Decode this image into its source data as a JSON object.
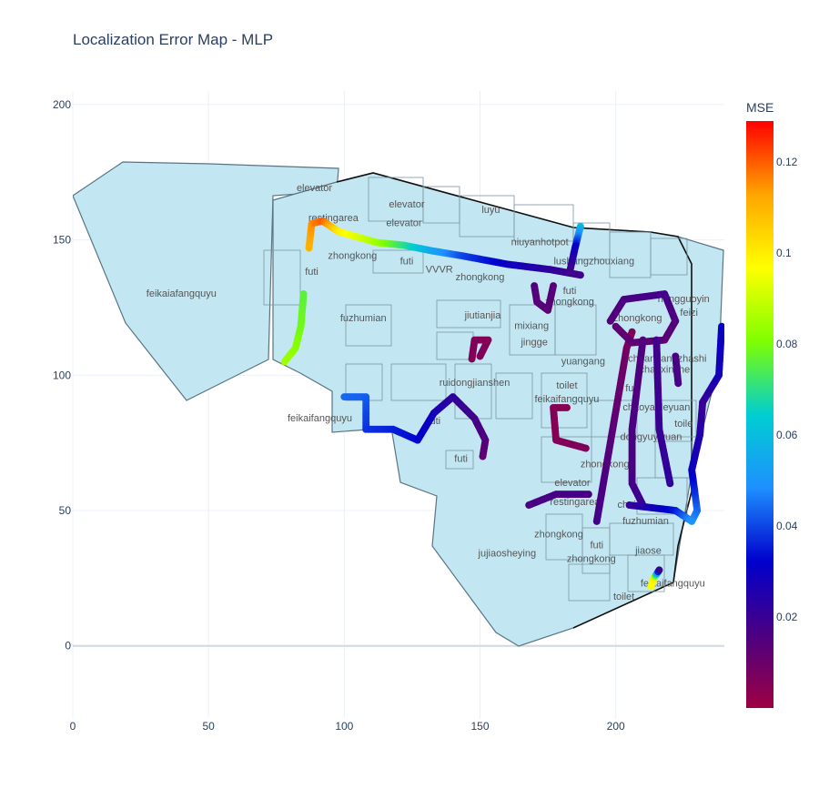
{
  "chart_data": {
    "type": "scatter",
    "title": "Localization Error Map - MLP",
    "xlim": [
      0,
      240
    ],
    "ylim": [
      -27,
      205
    ],
    "x_ticks": [
      0,
      50,
      100,
      150,
      200
    ],
    "y_ticks": [
      0,
      50,
      100,
      150,
      200
    ],
    "grid": true,
    "colorbar": {
      "title": "MSE",
      "range": [
        0.0,
        0.129
      ],
      "ticks": [
        "0.02",
        "0.04",
        "0.06",
        "0.08",
        "0.1",
        "0.12"
      ],
      "colorscale": [
        "#9e0142",
        "#4b0082",
        "#0000cd",
        "#1e90ff",
        "#00ced1",
        "#7fff00",
        "#ffff00",
        "#ffa500",
        "#ff0000"
      ]
    },
    "floorplan_color": "#c3e7f2",
    "labels": [
      {
        "text": "elevator",
        "x": 89,
        "y": 168
      },
      {
        "text": "restingarea",
        "x": 96,
        "y": 157
      },
      {
        "text": "elevator",
        "x": 123,
        "y": 162
      },
      {
        "text": "elevator",
        "x": 122,
        "y": 155
      },
      {
        "text": "luyu",
        "x": 154,
        "y": 160
      },
      {
        "text": "niuyanhotpot",
        "x": 172,
        "y": 148
      },
      {
        "text": "zhongkong",
        "x": 103,
        "y": 143
      },
      {
        "text": "futi",
        "x": 123,
        "y": 141
      },
      {
        "text": "VVVR",
        "x": 135,
        "y": 138
      },
      {
        "text": "lushangzhouxiang",
        "x": 192,
        "y": 141
      },
      {
        "text": "zhongkong",
        "x": 150,
        "y": 135
      },
      {
        "text": "futi",
        "x": 88,
        "y": 137
      },
      {
        "text": "futi",
        "x": 183,
        "y": 130
      },
      {
        "text": "zhongkong",
        "x": 183,
        "y": 126
      },
      {
        "text": "feikaiafangquyu",
        "x": 40,
        "y": 129
      },
      {
        "text": "hengguoyin",
        "x": 225,
        "y": 127
      },
      {
        "text": "fuzhumian",
        "x": 107,
        "y": 120
      },
      {
        "text": "jiutianjia",
        "x": 151,
        "y": 121
      },
      {
        "text": "zhongkong",
        "x": 208,
        "y": 120
      },
      {
        "text": "mixiang",
        "x": 169,
        "y": 117
      },
      {
        "text": "feizi",
        "x": 227,
        "y": 122
      },
      {
        "text": "jingge",
        "x": 170,
        "y": 111
      },
      {
        "text": "chuangangzhashi",
        "x": 219,
        "y": 105
      },
      {
        "text": "yuangang",
        "x": 188,
        "y": 104
      },
      {
        "text": "chaoxinzhe",
        "x": 218,
        "y": 101
      },
      {
        "text": "ruidongjianshen",
        "x": 148,
        "y": 96
      },
      {
        "text": "toilet",
        "x": 182,
        "y": 95
      },
      {
        "text": "futi",
        "x": 206,
        "y": 94
      },
      {
        "text": "feikaifangquyu",
        "x": 182,
        "y": 90
      },
      {
        "text": "chaoyanleyuan",
        "x": 215,
        "y": 87
      },
      {
        "text": "feikaifangquyu",
        "x": 91,
        "y": 83
      },
      {
        "text": "futi",
        "x": 133,
        "y": 82
      },
      {
        "text": "toile",
        "x": 225,
        "y": 81
      },
      {
        "text": "dongyuyiyuan",
        "x": 213,
        "y": 76
      },
      {
        "text": "futi",
        "x": 143,
        "y": 68
      },
      {
        "text": "zhongkong",
        "x": 196,
        "y": 66
      },
      {
        "text": "elevator",
        "x": 184,
        "y": 59
      },
      {
        "text": "restingarea",
        "x": 185,
        "y": 52
      },
      {
        "text": "chei",
        "x": 204,
        "y": 51
      },
      {
        "text": "fuzhumian",
        "x": 211,
        "y": 45
      },
      {
        "text": "zhongkong",
        "x": 179,
        "y": 40
      },
      {
        "text": "futi",
        "x": 193,
        "y": 36
      },
      {
        "text": "jujiaosheying",
        "x": 160,
        "y": 33
      },
      {
        "text": "jiaose",
        "x": 212,
        "y": 34
      },
      {
        "text": "zhongkong",
        "x": 191,
        "y": 31
      },
      {
        "text": "feikaifangquyu",
        "x": 221,
        "y": 22
      },
      {
        "text": "toilet",
        "x": 203,
        "y": 17
      }
    ],
    "series": [
      {
        "points": [
          [
            100,
            92
          ],
          [
            108,
            92
          ],
          [
            108,
            80
          ],
          [
            118,
            80
          ],
          [
            127,
            76
          ],
          [
            133,
            86
          ],
          [
            140,
            92
          ],
          [
            148,
            84
          ],
          [
            152,
            76
          ],
          [
            151,
            70
          ]
        ],
        "mse": [
          0.044,
          0.043,
          0.038,
          0.036,
          0.033,
          0.028,
          0.022,
          0.018,
          0.015,
          0.012
        ]
      },
      {
        "points": [
          [
            87,
            147
          ],
          [
            88,
            156
          ],
          [
            92,
            157
          ],
          [
            98,
            153
          ],
          [
            112,
            149
          ],
          [
            122,
            148
          ],
          [
            132,
            146
          ],
          [
            144,
            144
          ],
          [
            160,
            141
          ],
          [
            176,
            139
          ],
          [
            187,
            137
          ]
        ],
        "mse": [
          0.11,
          0.115,
          0.12,
          0.1,
          0.085,
          0.07,
          0.055,
          0.04,
          0.03,
          0.022,
          0.018
        ]
      },
      {
        "points": [
          [
            78,
            105
          ],
          [
            82,
            110
          ],
          [
            84,
            118
          ],
          [
            85,
            130
          ]
        ],
        "mse": [
          0.085,
          0.082,
          0.079,
          0.076
        ]
      },
      {
        "points": [
          [
            187,
            155
          ],
          [
            185,
            147
          ],
          [
            183,
            138
          ]
        ],
        "mse": [
          0.06,
          0.03,
          0.018
        ]
      },
      {
        "points": [
          [
            170,
            133
          ],
          [
            171,
            127
          ],
          [
            175,
            124
          ],
          [
            177,
            133
          ]
        ],
        "mse": [
          0.015,
          0.014,
          0.013,
          0.014
        ]
      },
      {
        "points": [
          [
            147,
            106
          ],
          [
            148,
            113
          ],
          [
            153,
            113
          ],
          [
            150,
            107
          ]
        ],
        "mse": [
          0.005,
          0.006,
          0.005,
          0.006
        ]
      },
      {
        "points": [
          [
            182,
            88
          ],
          [
            177,
            88
          ],
          [
            178,
            76
          ],
          [
            189,
            73
          ]
        ],
        "mse": [
          0.004,
          0.005,
          0.005,
          0.006
        ]
      },
      {
        "points": [
          [
            168,
            52
          ],
          [
            178,
            56
          ],
          [
            190,
            56
          ]
        ],
        "mse": [
          0.016,
          0.017,
          0.017
        ]
      },
      {
        "points": [
          [
            193,
            46
          ],
          [
            198,
            75
          ],
          [
            204,
            110
          ],
          [
            206,
            116
          ]
        ],
        "mse": [
          0.018,
          0.014,
          0.008,
          0.006
        ]
      },
      {
        "points": [
          [
            198,
            120
          ],
          [
            203,
            128
          ],
          [
            218,
            130
          ],
          [
            222,
            120
          ],
          [
            218,
            113
          ],
          [
            206,
            112
          ],
          [
            200,
            118
          ]
        ],
        "mse": [
          0.014,
          0.016,
          0.018,
          0.015,
          0.013,
          0.012,
          0.012
        ]
      },
      {
        "points": [
          [
            210,
            113
          ],
          [
            206,
            80
          ],
          [
            206,
            60
          ],
          [
            210,
            52
          ]
        ],
        "mse": [
          0.015,
          0.016,
          0.017,
          0.02
        ]
      },
      {
        "points": [
          [
            215,
            113
          ],
          [
            216,
            80
          ],
          [
            220,
            60
          ]
        ],
        "mse": [
          0.018,
          0.02,
          0.022
        ]
      },
      {
        "points": [
          [
            205,
            52
          ],
          [
            222,
            50
          ],
          [
            228,
            46
          ],
          [
            230,
            50
          ],
          [
            228,
            65
          ],
          [
            231,
            78
          ],
          [
            232,
            90
          ]
        ],
        "mse": [
          0.02,
          0.035,
          0.05,
          0.045,
          0.03,
          0.025,
          0.02
        ]
      },
      {
        "points": [
          [
            232,
            90
          ],
          [
            238,
            100
          ],
          [
            239,
            118
          ]
        ],
        "mse": [
          0.02,
          0.028,
          0.03
        ]
      },
      {
        "points": [
          [
            222,
            107
          ],
          [
            223,
            97
          ]
        ],
        "mse": [
          0.016,
          0.017
        ]
      },
      {
        "points": [
          [
            213,
            22
          ],
          [
            214,
            25
          ],
          [
            216,
            28
          ]
        ],
        "mse": [
          0.095,
          0.1,
          0.02
        ]
      }
    ]
  }
}
